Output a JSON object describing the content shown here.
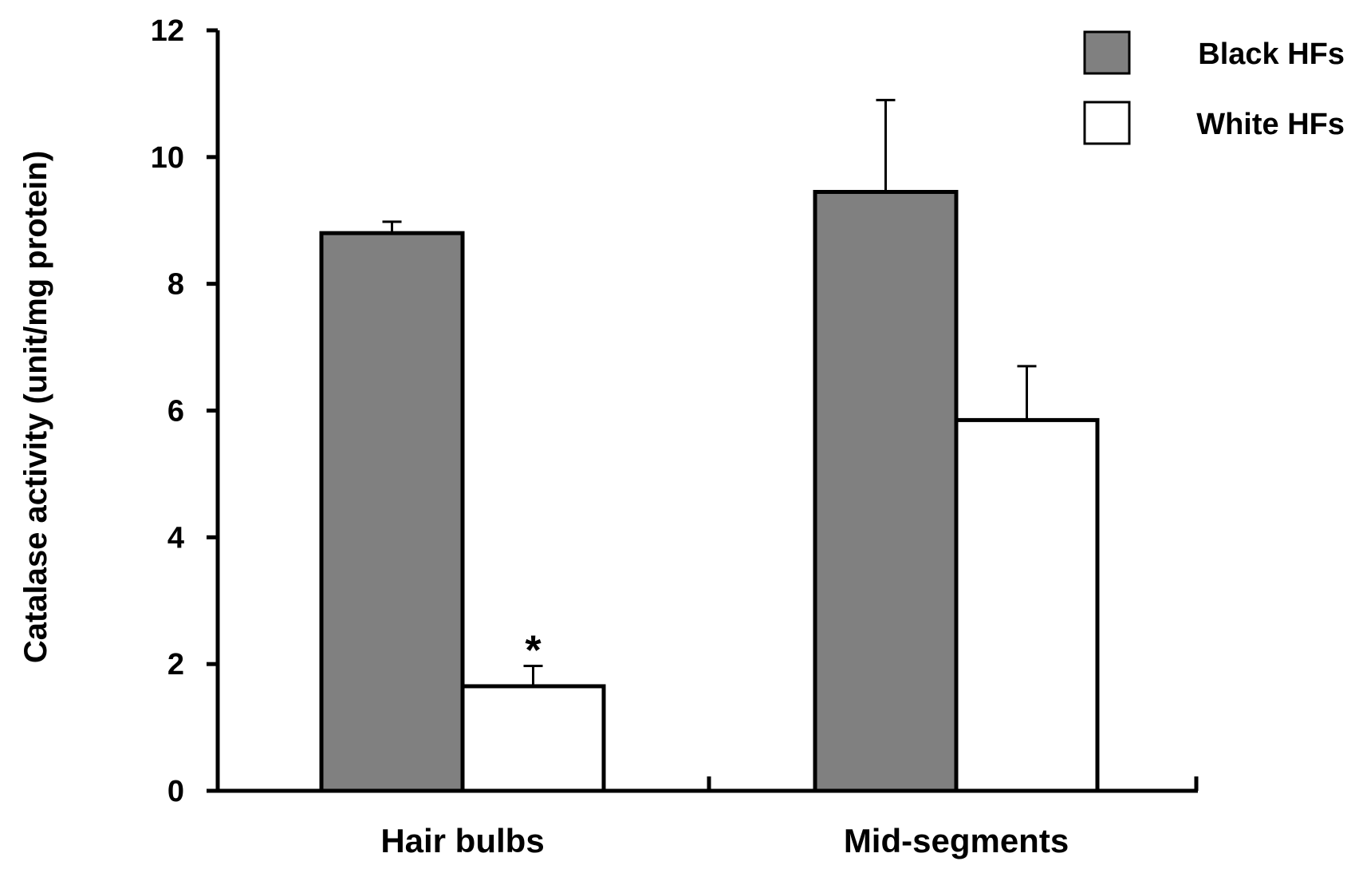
{
  "chart_data": {
    "type": "bar",
    "title": "",
    "xlabel": "",
    "ylabel": "Catalase activity (unit/mg protein)",
    "ylim": [
      0,
      12
    ],
    "yticks": [
      "0",
      "2",
      "4",
      "6",
      "8",
      "10",
      "12"
    ],
    "categories": [
      "Hair bulbs",
      "Mid-segments"
    ],
    "series": [
      {
        "name": "Black HFs",
        "color": "#808080",
        "values": [
          8.8,
          9.45
        ],
        "errors": [
          0.18,
          1.45
        ]
      },
      {
        "name": "White HFs",
        "color": "#ffffff",
        "values": [
          1.65,
          5.85
        ],
        "errors": [
          0.32,
          0.85
        ]
      }
    ],
    "annotations": [
      {
        "text": "*",
        "category": "Hair bulbs",
        "series": "White HFs"
      }
    ],
    "grid": false,
    "legend_position": "top-right",
    "error_bars": "upper"
  }
}
